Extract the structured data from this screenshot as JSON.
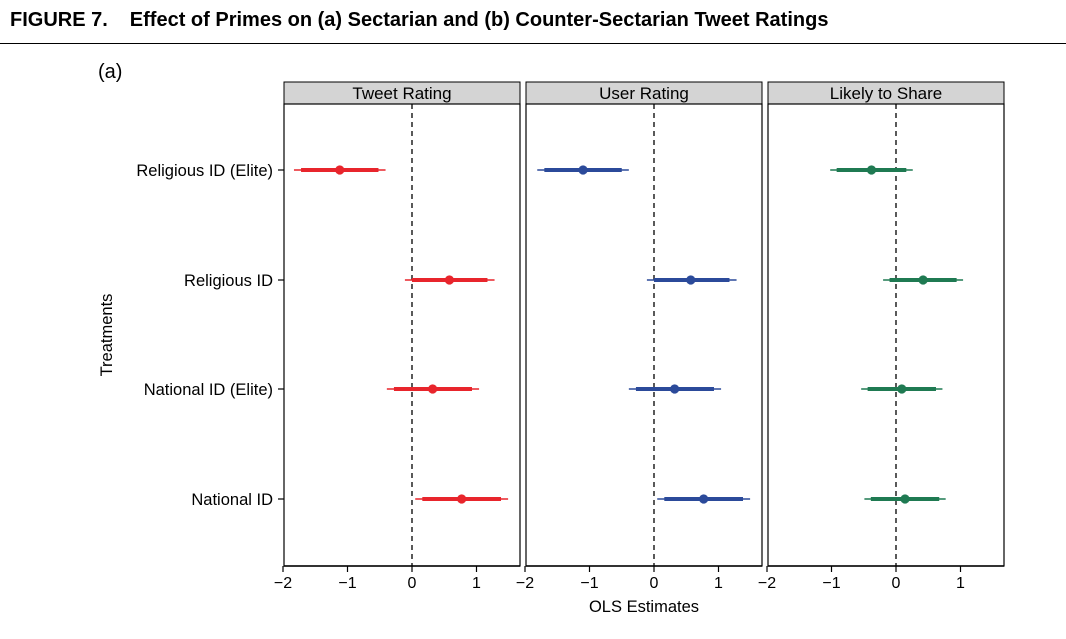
{
  "figure": {
    "number": "FIGURE 7.",
    "title": "Effect of Primes on (a) Sectarian and (b) Counter-Sectarian Tweet Ratings",
    "panel_tag": "(a)"
  },
  "chart_data": {
    "type": "scatter",
    "subtype": "coefficient-plot",
    "xlabel": "OLS Estimates",
    "ylabel": "Treatments",
    "xlim": [
      -2,
      1.5
    ],
    "xticks": [
      -2,
      -1,
      0,
      1
    ],
    "reference_line": 0,
    "categories": [
      "Religious ID (Elite)",
      "Religious ID",
      "National ID (Elite)",
      "National ID"
    ],
    "facets": [
      {
        "name": "Tweet Rating",
        "color": "#e8252c",
        "estimates": [
          -1.12,
          0.58,
          0.32,
          0.77
        ],
        "ci90": [
          [
            -1.72,
            -0.52
          ],
          [
            0.0,
            1.17
          ],
          [
            -0.28,
            0.93
          ],
          [
            0.16,
            1.38
          ]
        ],
        "ci95": [
          [
            -1.83,
            -0.41
          ],
          [
            -0.11,
            1.28
          ],
          [
            -0.39,
            1.04
          ],
          [
            0.05,
            1.49
          ]
        ]
      },
      {
        "name": "User Rating",
        "color": "#2b4a9a",
        "estimates": [
          -1.1,
          0.57,
          0.32,
          0.77
        ],
        "ci90": [
          [
            -1.7,
            -0.5
          ],
          [
            0.0,
            1.17
          ],
          [
            -0.28,
            0.93
          ],
          [
            0.16,
            1.38
          ]
        ],
        "ci95": [
          [
            -1.81,
            -0.39
          ],
          [
            -0.11,
            1.28
          ],
          [
            -0.39,
            1.04
          ],
          [
            0.05,
            1.49
          ]
        ]
      },
      {
        "name": "Likely to Share",
        "color": "#1f7a52",
        "estimates": [
          -0.38,
          0.42,
          0.09,
          0.14
        ],
        "ci90": [
          [
            -0.92,
            0.16
          ],
          [
            -0.1,
            0.94
          ],
          [
            -0.44,
            0.62
          ],
          [
            -0.39,
            0.67
          ]
        ],
        "ci95": [
          [
            -1.02,
            0.26
          ],
          [
            -0.2,
            1.04
          ],
          [
            -0.54,
            0.72
          ],
          [
            -0.49,
            0.77
          ]
        ]
      }
    ]
  }
}
